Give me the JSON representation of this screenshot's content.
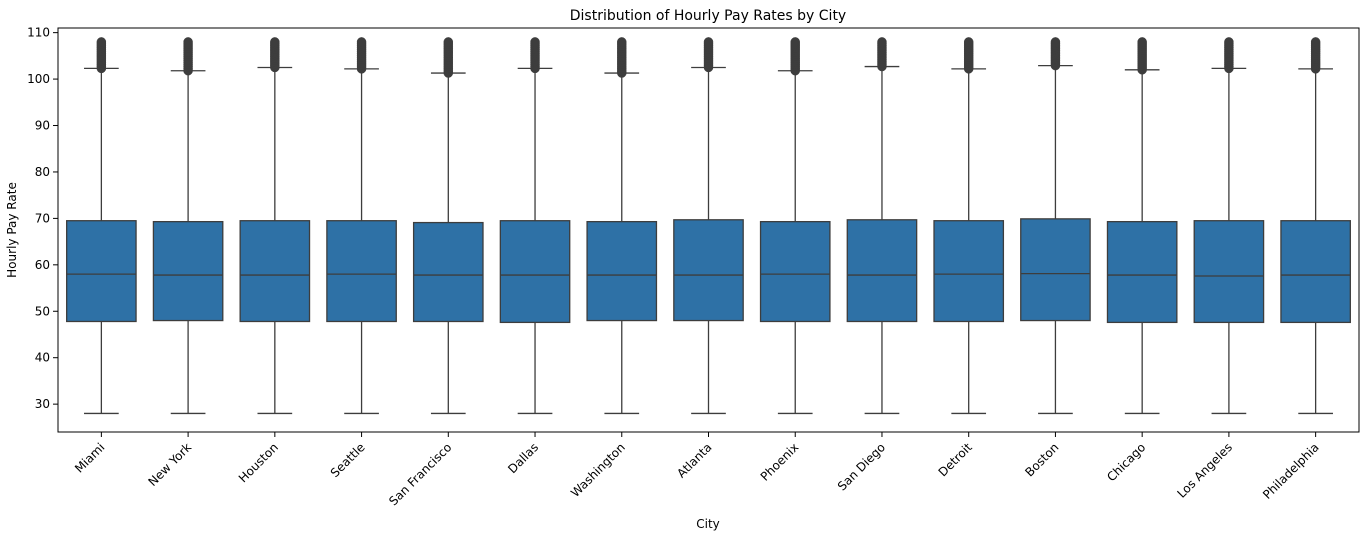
{
  "chart_data": {
    "type": "box",
    "title": "Distribution of Hourly Pay Rates by City",
    "xlabel": "City",
    "ylabel": "Hourly Pay Rate",
    "ylim": [
      24,
      111
    ],
    "yticks": [
      30,
      40,
      50,
      60,
      70,
      80,
      90,
      100,
      110
    ],
    "grid": false,
    "box_color": "#2e71a6",
    "line_color": "#3d3d3d",
    "categories": [
      "Miami",
      "New York",
      "Houston",
      "Seattle",
      "San Francisco",
      "Dallas",
      "Washington",
      "Atlanta",
      "Phoenix",
      "San Diego",
      "Detroit",
      "Boston",
      "Chicago",
      "Los Angeles",
      "Philadelphia"
    ],
    "boxes": [
      {
        "category": "Miami",
        "whisker_low": 28,
        "q1": 47.8,
        "median": 58.0,
        "q3": 69.5,
        "whisker_high": 102.3,
        "outliers_from": 102.3,
        "outliers_to": 108
      },
      {
        "category": "New York",
        "whisker_low": 28,
        "q1": 48.0,
        "median": 57.8,
        "q3": 69.3,
        "whisker_high": 101.8,
        "outliers_from": 101.8,
        "outliers_to": 108
      },
      {
        "category": "Houston",
        "whisker_low": 28,
        "q1": 47.8,
        "median": 57.8,
        "q3": 69.5,
        "whisker_high": 102.5,
        "outliers_from": 102.5,
        "outliers_to": 108
      },
      {
        "category": "Seattle",
        "whisker_low": 28,
        "q1": 47.8,
        "median": 58.0,
        "q3": 69.5,
        "whisker_high": 102.2,
        "outliers_from": 102.2,
        "outliers_to": 108
      },
      {
        "category": "San Francisco",
        "whisker_low": 28,
        "q1": 47.8,
        "median": 57.8,
        "q3": 69.1,
        "whisker_high": 101.3,
        "outliers_from": 101.3,
        "outliers_to": 108
      },
      {
        "category": "Dallas",
        "whisker_low": 28,
        "q1": 47.6,
        "median": 57.8,
        "q3": 69.5,
        "whisker_high": 102.3,
        "outliers_from": 102.3,
        "outliers_to": 108
      },
      {
        "category": "Washington",
        "whisker_low": 28,
        "q1": 48.0,
        "median": 57.8,
        "q3": 69.3,
        "whisker_high": 101.3,
        "outliers_from": 101.3,
        "outliers_to": 108
      },
      {
        "category": "Atlanta",
        "whisker_low": 28,
        "q1": 48.0,
        "median": 57.8,
        "q3": 69.7,
        "whisker_high": 102.5,
        "outliers_from": 102.5,
        "outliers_to": 108
      },
      {
        "category": "Phoenix",
        "whisker_low": 28,
        "q1": 47.8,
        "median": 58.0,
        "q3": 69.3,
        "whisker_high": 101.8,
        "outliers_from": 101.8,
        "outliers_to": 108
      },
      {
        "category": "San Diego",
        "whisker_low": 28,
        "q1": 47.8,
        "median": 57.8,
        "q3": 69.7,
        "whisker_high": 102.7,
        "outliers_from": 102.7,
        "outliers_to": 108
      },
      {
        "category": "Detroit",
        "whisker_low": 28,
        "q1": 47.8,
        "median": 58.0,
        "q3": 69.5,
        "whisker_high": 102.2,
        "outliers_from": 102.2,
        "outliers_to": 108
      },
      {
        "category": "Boston",
        "whisker_low": 28,
        "q1": 48.0,
        "median": 58.1,
        "q3": 69.9,
        "whisker_high": 102.9,
        "outliers_from": 102.9,
        "outliers_to": 108
      },
      {
        "category": "Chicago",
        "whisker_low": 28,
        "q1": 47.6,
        "median": 57.8,
        "q3": 69.3,
        "whisker_high": 102.0,
        "outliers_from": 102.0,
        "outliers_to": 108
      },
      {
        "category": "Los Angeles",
        "whisker_low": 28,
        "q1": 47.6,
        "median": 57.6,
        "q3": 69.5,
        "whisker_high": 102.3,
        "outliers_from": 102.3,
        "outliers_to": 108
      },
      {
        "category": "Philadelphia",
        "whisker_low": 28,
        "q1": 47.6,
        "median": 57.8,
        "q3": 69.5,
        "whisker_high": 102.2,
        "outliers_from": 102.2,
        "outliers_to": 108
      }
    ]
  }
}
